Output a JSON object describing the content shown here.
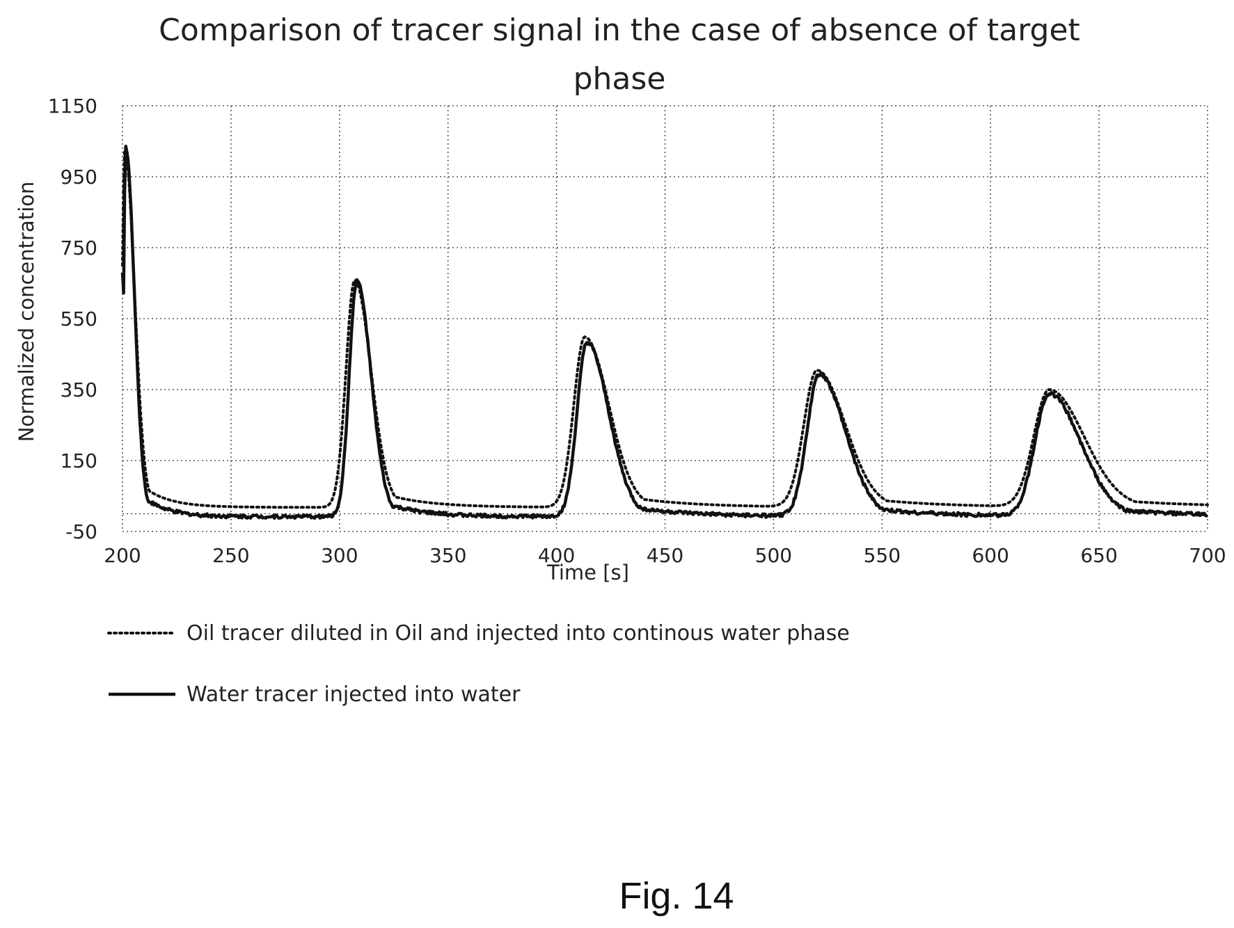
{
  "chart_data": {
    "type": "line",
    "title": "Comparison of tracer signal in the case of absence of target phase",
    "title_lines": [
      "Comparison of tracer signal in the case of absence of target",
      "phase"
    ],
    "xlabel": "Time [s]",
    "ylabel": "Normalized concentration",
    "xlim": [
      200,
      700
    ],
    "ylim": [
      -50,
      1150
    ],
    "xticks": [
      "200",
      "250",
      "300",
      "350",
      "400",
      "450",
      "500",
      "550",
      "600",
      "650",
      "700"
    ],
    "yticks": [
      "1150",
      "950",
      "750",
      "550",
      "350",
      "150",
      "-50"
    ],
    "grid": true,
    "legend_position": "bottom",
    "series": [
      {
        "name": "Oil tracer diluted in Oil and injected into continous water phase",
        "style": "dotted",
        "color": "#111111",
        "peaks": [
          {
            "t": 201,
            "height": 1020,
            "rise": 1.2,
            "decay": 4.5
          },
          {
            "t": 307,
            "height": 640,
            "rise": 4.0,
            "decay": 7.5
          },
          {
            "t": 413,
            "height": 480,
            "rise": 5.0,
            "decay": 11.0
          },
          {
            "t": 520,
            "height": 385,
            "rise": 6.0,
            "decay": 13.0
          },
          {
            "t": 627,
            "height": 330,
            "rise": 7.0,
            "decay": 16.0
          }
        ],
        "x": [
          200,
          201,
          203,
          206,
          210,
          215,
          222,
          235,
          260,
          290,
          297,
          300,
          303,
          307,
          310,
          314,
          320,
          330,
          350,
          380,
          400,
          405,
          410,
          413,
          418,
          425,
          440,
          460,
          500,
          510,
          515,
          520,
          527,
          535,
          550,
          580,
          610,
          620,
          627,
          635,
          645,
          660,
          680,
          700
        ],
        "y": [
          700,
          1020,
          950,
          600,
          250,
          90,
          45,
          25,
          18,
          15,
          50,
          250,
          500,
          640,
          560,
          380,
          170,
          75,
          35,
          22,
          20,
          120,
          380,
          480,
          430,
          280,
          95,
          45,
          18,
          120,
          300,
          385,
          320,
          200,
          80,
          32,
          15,
          120,
          330,
          290,
          190,
          90,
          40,
          22
        ]
      },
      {
        "name": "Water tracer injected into water",
        "style": "solid",
        "color": "#111111",
        "peaks": [
          {
            "t": 201.5,
            "height": 1035,
            "rise": 1.0,
            "decay": 4.0
          },
          {
            "t": 308,
            "height": 665,
            "rise": 3.5,
            "decay": 6.5
          },
          {
            "t": 414,
            "height": 490,
            "rise": 4.5,
            "decay": 10.0
          },
          {
            "t": 521,
            "height": 400,
            "rise": 5.5,
            "decay": 12.0
          },
          {
            "t": 627,
            "height": 345,
            "rise": 6.5,
            "decay": 14.5
          }
        ],
        "x": [
          200,
          201.5,
          203,
          206,
          210,
          215,
          222,
          235,
          260,
          290,
          297,
          300,
          304,
          308,
          311,
          315,
          320,
          330,
          350,
          385,
          400,
          406,
          410,
          414,
          419,
          425,
          440,
          460,
          500,
          510,
          516,
          521,
          527,
          535,
          550,
          580,
          610,
          620,
          627,
          635,
          645,
          660,
          680,
          700
        ],
        "y": [
          680,
          1035,
          960,
          580,
          230,
          70,
          15,
          0,
          -5,
          -8,
          30,
          220,
          520,
          665,
          560,
          360,
          150,
          40,
          2,
          -15,
          -5,
          110,
          360,
          490,
          440,
          280,
          80,
          20,
          -5,
          100,
          300,
          400,
          330,
          200,
          60,
          8,
          -10,
          100,
          345,
          300,
          170,
          65,
          10,
          -5
        ]
      }
    ]
  },
  "caption": "Fig. 14"
}
